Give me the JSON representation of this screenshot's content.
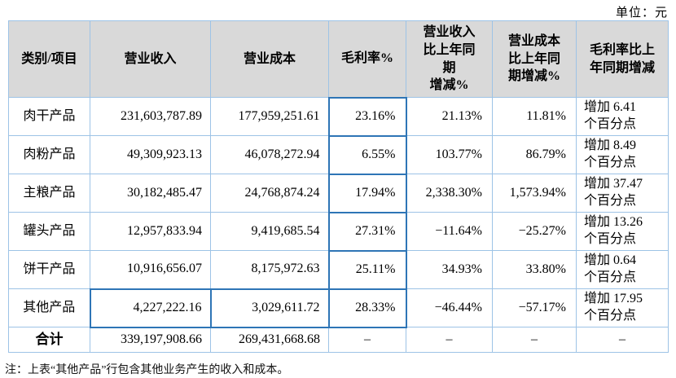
{
  "unit_label": "单位：元",
  "colors": {
    "header_bg": "#d9d9d9",
    "grid_border": "#9dc3e6",
    "highlight_border": "#2e75b6"
  },
  "table": {
    "headers": [
      "类别/项目",
      "营业收入",
      "营业成本",
      "毛利率%",
      "营业收入\n比上年同\n期\n增减%",
      "营业成本\n比上年同\n期增减%",
      "毛利率比上\n年同期增减"
    ],
    "rows": [
      [
        "肉干产品",
        "231,603,787.89",
        "177,959,251.61",
        "23.16%",
        "21.13%",
        "11.81%",
        "增加 6.41\n个百分点"
      ],
      [
        "肉粉产品",
        "49,309,923.13",
        "46,078,272.94",
        "6.55%",
        "103.77%",
        "86.79%",
        "增加 8.49\n个百分点"
      ],
      [
        "主粮产品",
        "30,182,485.47",
        "24,768,874.24",
        "17.94%",
        "2,338.30%",
        "1,573.94%",
        "增加 37.47\n个百分点"
      ],
      [
        "罐头产品",
        "12,957,833.94",
        "9,419,685.54",
        "27.31%",
        "−11.64%",
        "−25.27%",
        "增加 13.26\n个百分点"
      ],
      [
        "饼干产品",
        "10,916,656.07",
        "8,175,972.63",
        "25.11%",
        "34.93%",
        "33.80%",
        "增加 0.64\n个百分点"
      ],
      [
        "其他产品",
        "4,227,222.16",
        "3,029,611.72",
        "28.33%",
        "−46.44%",
        "−57.17%",
        "增加 17.95\n个百分点"
      ]
    ],
    "total_row": [
      "合计",
      "339,197,908.66",
      "269,431,668.68",
      "–",
      "–",
      "–",
      "–"
    ]
  },
  "footnote": "注：上表“其他产品”行包含其他业务产生的收入和成本。"
}
